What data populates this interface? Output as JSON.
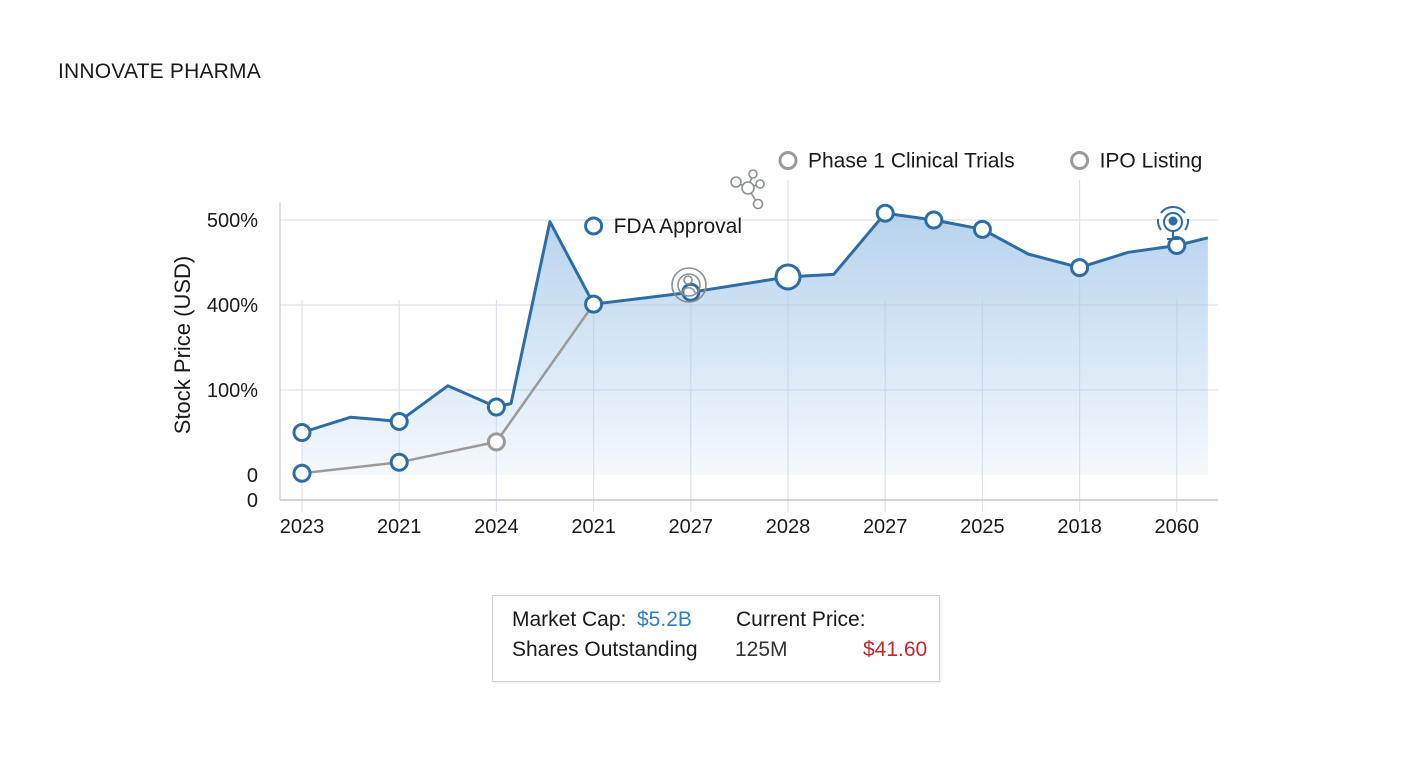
{
  "company_name": "INNOVATE PHARMA",
  "colors": {
    "primary_line": "#2e6da4",
    "secondary_line": "#9a9a9a",
    "area_fill": "#a9cbea",
    "market_cap_value": "#2f7fc0",
    "current_price_value": "#c0282e",
    "grid": "#dde3ea"
  },
  "chart_data": {
    "type": "line",
    "title": "",
    "xlabel": "",
    "ylabel": "Stock Price (USD)",
    "categories": [
      "2023",
      "2021",
      "2024",
      "2021",
      "2027",
      "2028",
      "2027",
      "2025",
      "2018",
      "2060"
    ],
    "y_tick_labels": [
      "0",
      "0",
      "100%",
      "400%",
      "500%"
    ],
    "grid": true,
    "series": [
      {
        "values": [
          {
            "x": 0,
            "y": 0.5,
            "marker": true
          },
          {
            "x": 0.5,
            "y": 0.68
          },
          {
            "x": 1,
            "y": 0.63,
            "marker": true
          },
          {
            "x": 1.5,
            "y": 1.05
          },
          {
            "x": 2,
            "y": 0.8,
            "marker": true
          },
          {
            "x": 2.15,
            "y": 0.84
          },
          {
            "x": 2.55,
            "y": 2.98
          },
          {
            "x": 3,
            "y": 2.01,
            "marker": true
          },
          {
            "x": 4,
            "y": 2.15,
            "marker": true
          },
          {
            "x": 5,
            "y": 2.33,
            "marker": true,
            "large": true
          },
          {
            "x": 5.47,
            "y": 2.36
          },
          {
            "x": 6,
            "y": 3.08,
            "marker": true
          },
          {
            "x": 6.5,
            "y": 3.0,
            "marker": true
          },
          {
            "x": 7,
            "y": 2.89,
            "marker": true
          },
          {
            "x": 7.47,
            "y": 2.6
          },
          {
            "x": 8,
            "y": 2.44,
            "marker": true
          },
          {
            "x": 8.5,
            "y": 2.62
          },
          {
            "x": 9,
            "y": 2.7,
            "marker": true
          },
          {
            "x": 9.32,
            "y": 2.79
          }
        ]
      },
      {
        "values": [
          {
            "x": 0,
            "y": 0.02,
            "marker": true
          },
          {
            "x": 1,
            "y": 0.15,
            "marker": true
          },
          {
            "x": 2,
            "y": 0.39,
            "marker": true
          },
          {
            "x": 3,
            "y": 2.01
          }
        ]
      }
    ],
    "annotations": [
      {
        "text": "FDA Approval",
        "x": 3,
        "y": 2.93,
        "icon": "target-person-icon"
      },
      {
        "text": "Phase 1 Clinical Trials",
        "x": 5,
        "y": 3.7,
        "icon": "molecule-icon"
      },
      {
        "text": "IPO Listing",
        "x": 8,
        "y": 3.7,
        "icon": "signal-tower-icon"
      }
    ]
  },
  "stats": {
    "market_cap_label": "Market Cap:",
    "market_cap_value": "$5.2B",
    "current_price_label": "Current Price:",
    "shares_outstanding_label": "Shares Outstanding",
    "shares_outstanding_value": "125M",
    "current_price_value": "$41.60"
  }
}
